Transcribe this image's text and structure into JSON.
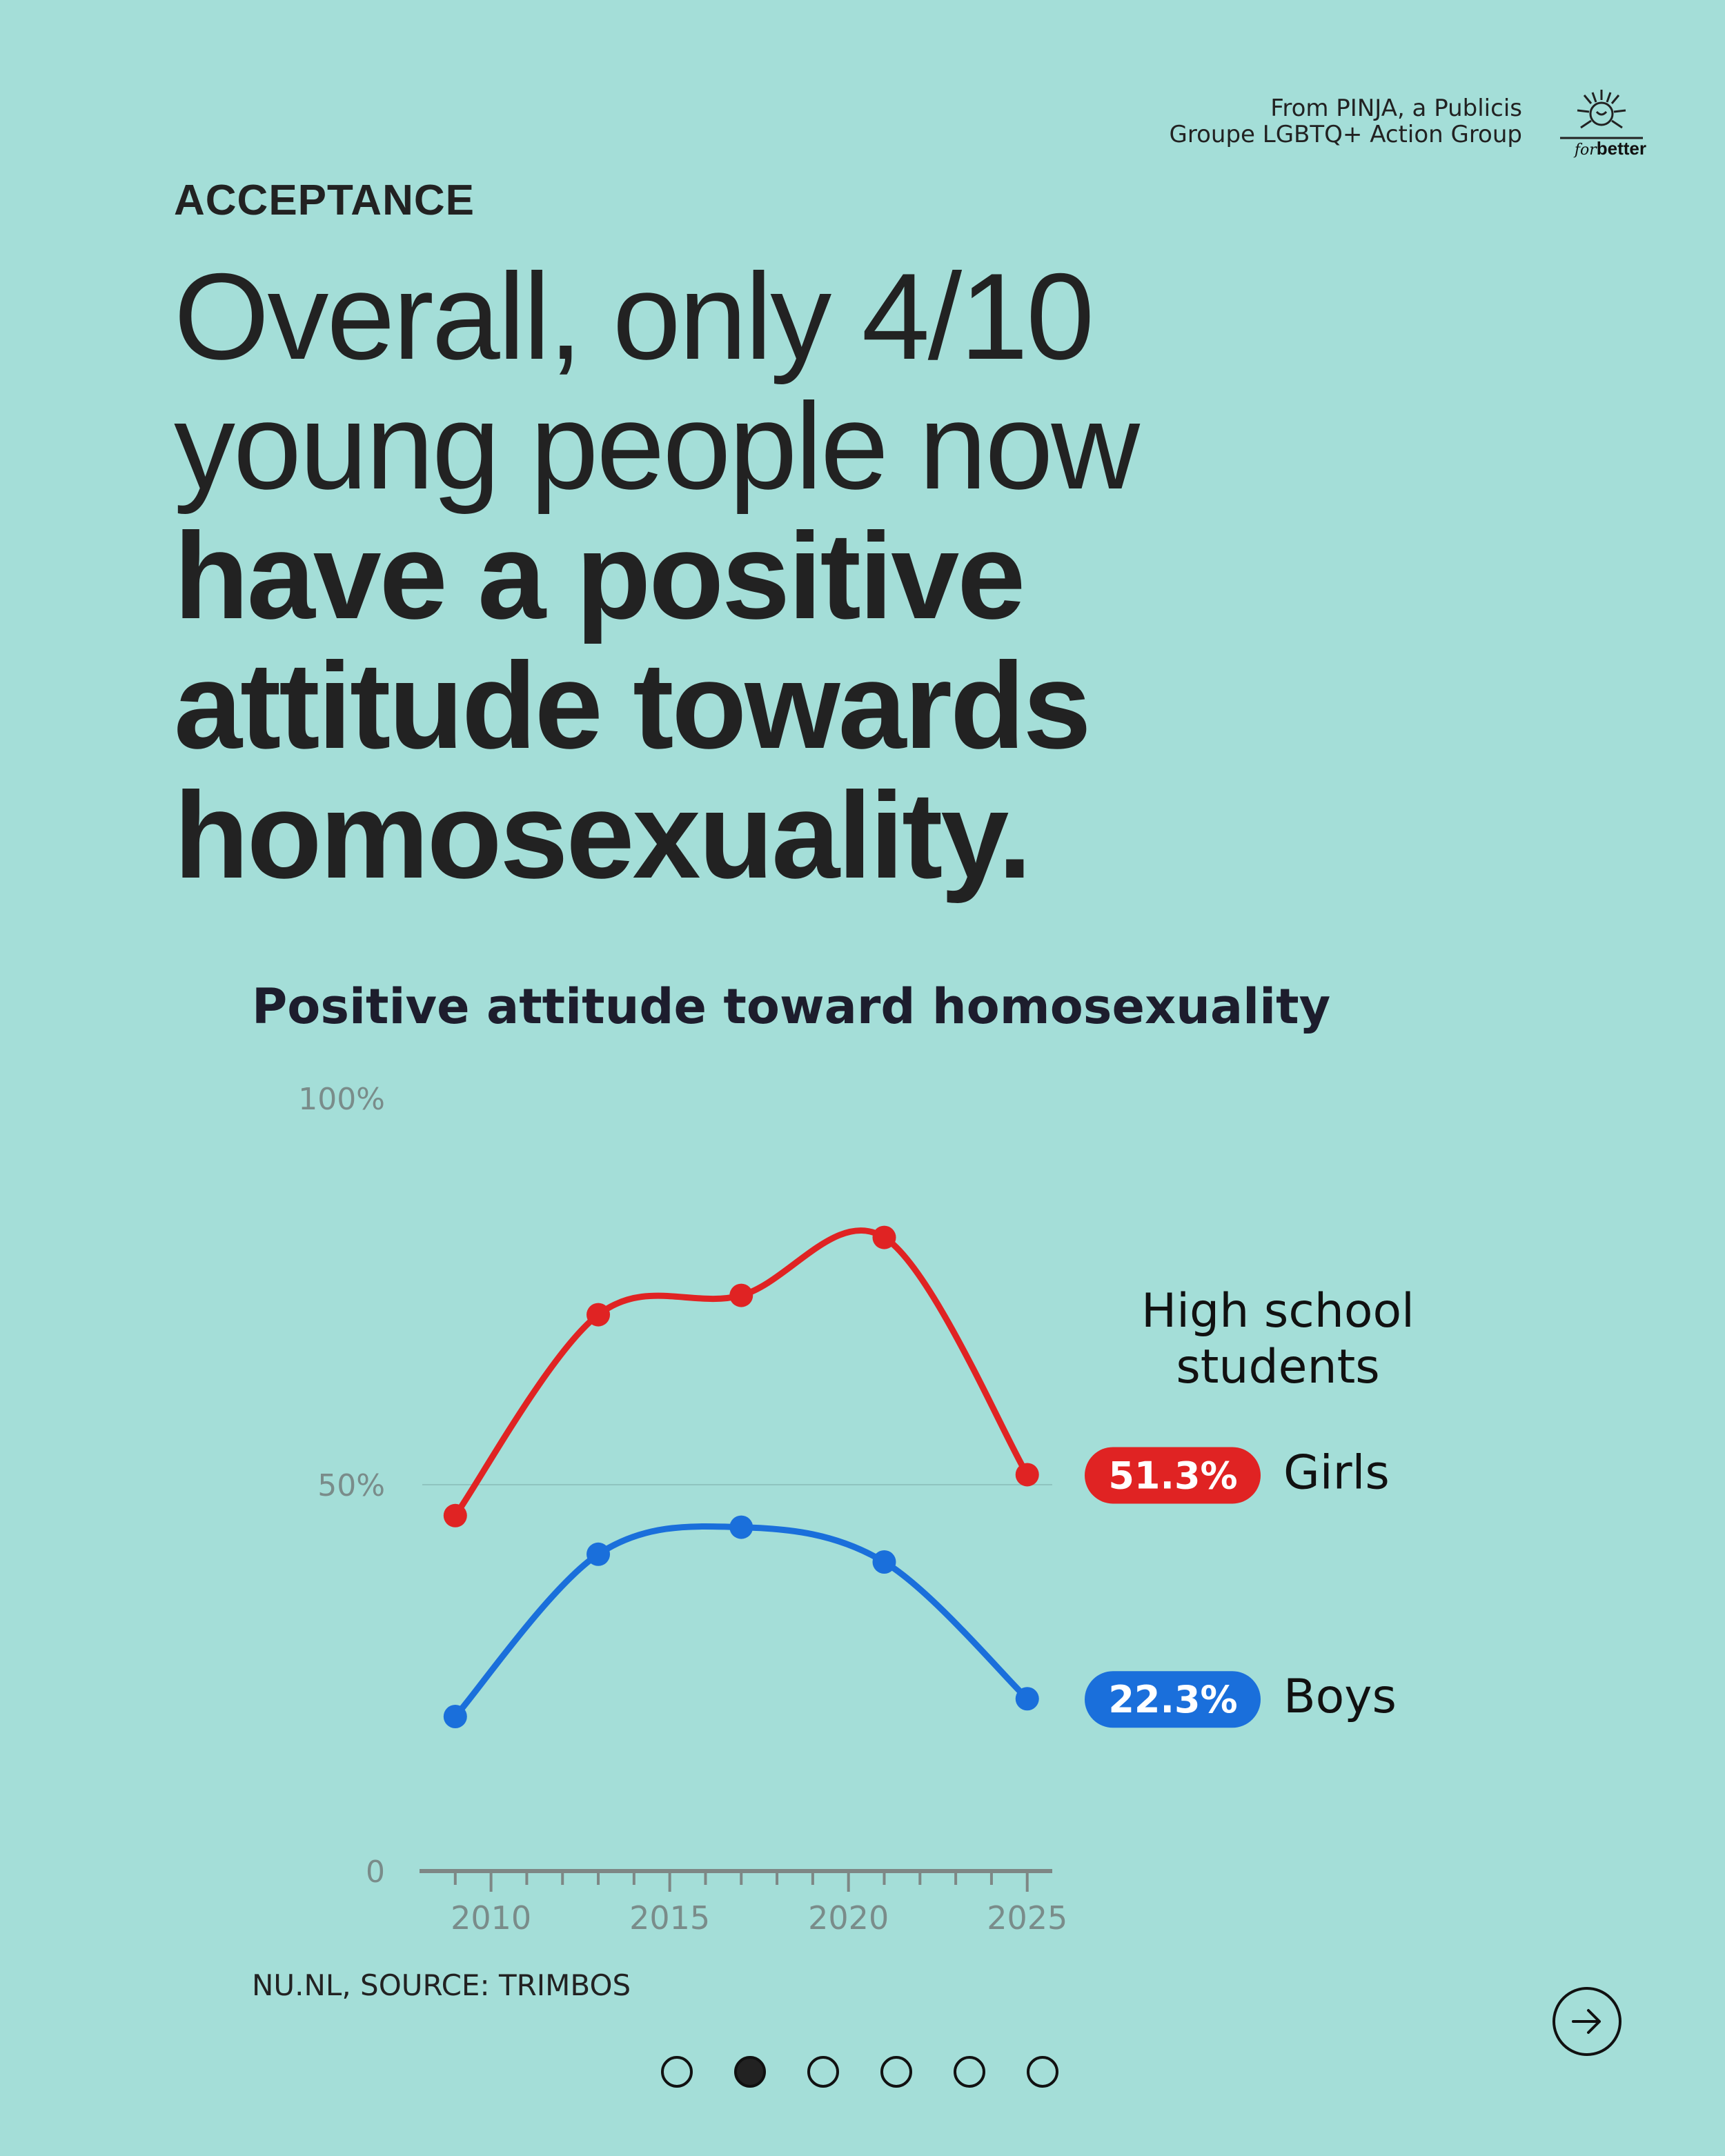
{
  "header": {
    "attribution_line1": "From PINJA, a Publicis",
    "attribution_line2": "Groupe LGBTQ+ Action Group",
    "logo_for": "for",
    "logo_better": "better"
  },
  "eyebrow": "ACCEPTANCE",
  "headline": {
    "line1": "Overall, only 4/10",
    "line2": "young people now",
    "line3": "have a positive",
    "line4": "attitude towards",
    "line5": "homosexuality."
  },
  "chart_data": {
    "type": "line",
    "title": "Positive attitude toward homosexuality",
    "y_ticks": [
      "0",
      "50%",
      "100%"
    ],
    "ylim": [
      0,
      100
    ],
    "x_ticks": [
      "2010",
      "2015",
      "2020",
      "2025"
    ],
    "xlim": [
      2008,
      2025.7
    ],
    "x": [
      2009,
      2013,
      2017,
      2021,
      2025
    ],
    "series": [
      {
        "name": "Girls",
        "values": [
          46,
          72,
          74.5,
          82,
          51.3
        ],
        "color": "#e02323",
        "label": "51.3%"
      },
      {
        "name": "Boys",
        "values": [
          20,
          41,
          44.5,
          40,
          22.3
        ],
        "color": "#1a6fdb",
        "label": "22.3%"
      }
    ],
    "group_label_line1": "High school",
    "group_label_line2": "students",
    "grid": "50% reference line only"
  },
  "source": "NU.NL, SOURCE: TRIMBOS",
  "pagination": {
    "count": 6,
    "active": 1
  },
  "colors": {
    "background": "#a4ded8",
    "girls": "#e02323",
    "boys": "#1a6fdb"
  }
}
